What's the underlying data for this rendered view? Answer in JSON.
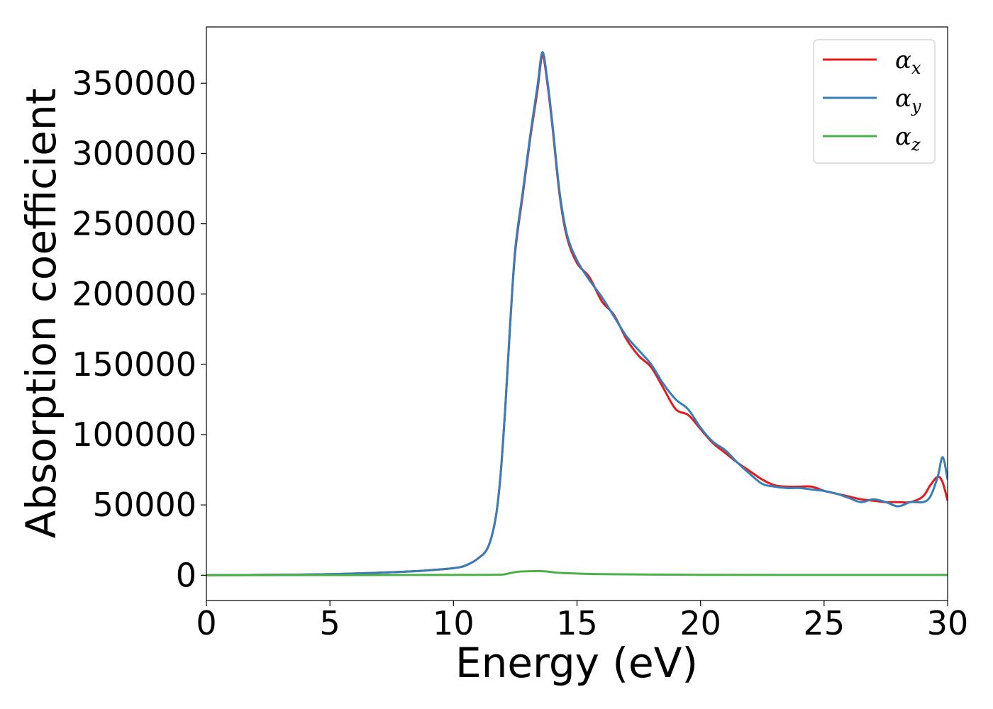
{
  "chart_data": {
    "type": "line",
    "title": "",
    "xlabel": "Energy (eV)",
    "ylabel": "Absorption coefficient",
    "xlim": [
      0,
      30
    ],
    "ylim": [
      -18000,
      390000
    ],
    "xticks": [
      0,
      5,
      10,
      15,
      20,
      25,
      30
    ],
    "yticks": [
      0,
      50000,
      100000,
      150000,
      200000,
      250000,
      300000,
      350000
    ],
    "grid": false,
    "legend_position": "top-right",
    "series": [
      {
        "name": "αx",
        "legend_symbol": "α",
        "legend_subscript": "x",
        "color": "#e41a1c",
        "x": [
          0,
          2,
          4,
          6,
          8,
          9,
          10,
          10.5,
          11,
          11.4,
          11.7,
          11.9,
          12.1,
          12.3,
          12.5,
          12.8,
          13.1,
          13.4,
          13.6,
          13.8,
          14.0,
          14.3,
          14.6,
          15.0,
          15.5,
          16.0,
          16.5,
          17.0,
          17.5,
          18.0,
          18.5,
          19.0,
          19.5,
          20.0,
          20.5,
          21.0,
          21.5,
          22.0,
          22.5,
          23.0,
          23.5,
          24.0,
          24.5,
          25.0,
          25.5,
          26.0,
          26.5,
          27.0,
          27.5,
          28.0,
          28.5,
          29.0,
          29.3,
          29.6,
          29.8,
          30.0
        ],
        "values": [
          0,
          200,
          500,
          1200,
          2500,
          3500,
          5000,
          7000,
          12000,
          20000,
          40000,
          70000,
          120000,
          180000,
          230000,
          270000,
          310000,
          345000,
          370000,
          350000,
          320000,
          270000,
          240000,
          222000,
          212000,
          195000,
          185000,
          168000,
          156000,
          148000,
          133000,
          118000,
          114000,
          104000,
          94000,
          87000,
          80000,
          74000,
          68000,
          64000,
          63000,
          63000,
          63000,
          60000,
          58000,
          56000,
          54000,
          53000,
          52000,
          52000,
          52000,
          56000,
          64000,
          70000,
          66000,
          53000
        ]
      },
      {
        "name": "αy",
        "legend_symbol": "α",
        "legend_subscript": "y",
        "color": "#377eb8",
        "x": [
          0,
          2,
          4,
          6,
          8,
          9,
          10,
          10.5,
          11,
          11.4,
          11.7,
          11.9,
          12.1,
          12.3,
          12.5,
          12.8,
          13.1,
          13.4,
          13.6,
          13.8,
          14.0,
          14.3,
          14.6,
          15.0,
          15.5,
          16.0,
          16.5,
          17.0,
          17.5,
          18.0,
          18.5,
          19.0,
          19.5,
          20.0,
          20.5,
          21.0,
          21.5,
          22.0,
          22.5,
          23.0,
          23.5,
          24.0,
          24.5,
          25.0,
          25.5,
          26.0,
          26.5,
          27.0,
          27.5,
          28.0,
          28.5,
          29.0,
          29.3,
          29.6,
          29.8,
          30.0
        ],
        "values": [
          0,
          200,
          500,
          1200,
          2500,
          3500,
          5000,
          7000,
          12000,
          20000,
          40000,
          70000,
          120000,
          180000,
          232000,
          272000,
          312000,
          348000,
          372000,
          352000,
          322000,
          272000,
          242000,
          224000,
          210000,
          198000,
          184000,
          170000,
          160000,
          150000,
          136000,
          125000,
          118000,
          105000,
          95000,
          89000,
          80000,
          72000,
          65000,
          63000,
          62000,
          62000,
          61000,
          60000,
          58000,
          55000,
          52000,
          54000,
          52000,
          49000,
          52000,
          52000,
          56000,
          70000,
          84000,
          68000
        ]
      },
      {
        "name": "αz",
        "legend_symbol": "α",
        "legend_subscript": "z",
        "color": "#4daf4a",
        "x": [
          0,
          5,
          10,
          11.5,
          12.0,
          12.3,
          12.6,
          13.0,
          13.4,
          13.8,
          14.2,
          15.0,
          16.0,
          18.0,
          20.0,
          25.0,
          30.0
        ],
        "values": [
          0,
          100,
          200,
          300,
          500,
          1500,
          2500,
          2800,
          3000,
          2600,
          1800,
          1200,
          800,
          500,
          300,
          200,
          200
        ]
      }
    ]
  }
}
